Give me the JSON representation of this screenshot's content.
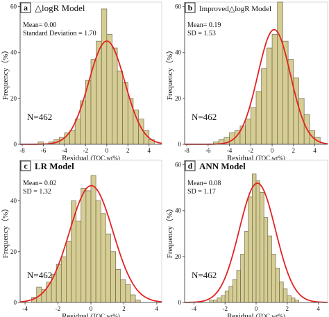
{
  "chart_data": [
    {
      "type": "bar",
      "panel_letter": "a",
      "title": "△logR Model",
      "stats": [
        "Mean= 0.00",
        "Standard Deviation = 1.70"
      ],
      "n_label": "N=462",
      "ylabel": "Frequency（%）",
      "xlabel": "Residual",
      "xlabel_unit": "(TOC.wt%)",
      "xlim": [
        -8.2,
        5.2
      ],
      "ylim": [
        0,
        62
      ],
      "xticks": [
        -8,
        -6,
        -4,
        -2,
        0,
        2,
        4
      ],
      "yticks": [
        0,
        20,
        40,
        60
      ],
      "bin_start": -6.5,
      "bin_width": 0.5,
      "values": [
        1,
        0,
        1,
        2,
        3,
        5,
        6,
        11,
        19,
        28,
        37,
        45,
        59,
        48,
        42,
        32,
        27,
        20,
        15,
        11,
        6,
        2
      ],
      "fit": {
        "mean": 0.0,
        "sd": 1.7,
        "peak": 45
      }
    },
    {
      "type": "bar",
      "panel_letter": "b",
      "title": "Improved△logR Model",
      "stats": [
        "Mean= 0.19",
        "SD = 1.53"
      ],
      "n_label": "N=462",
      "ylabel": "Frequency（%）",
      "xlabel": "Residual",
      "xlabel_unit": "(TOC.wt%)",
      "xlim": [
        -8.2,
        5.2
      ],
      "ylim": [
        0,
        62
      ],
      "xticks": [
        -8,
        -6,
        -4,
        -2,
        0,
        2,
        4
      ],
      "yticks": [
        0,
        20,
        40,
        60
      ],
      "bin_start": -5.5,
      "bin_width": 0.5,
      "values": [
        1,
        2,
        3,
        5,
        6,
        8,
        11,
        16,
        23,
        33,
        42,
        48,
        62,
        45,
        37,
        29,
        20,
        13,
        6,
        3
      ],
      "fit": {
        "mean": 0.19,
        "sd": 1.53,
        "peak": 50
      }
    },
    {
      "type": "bar",
      "panel_letter": "c",
      "title": "LR Model",
      "stats": [
        "Mean= 0.02",
        "SD = 1.32"
      ],
      "n_label": "N=462",
      "ylabel": "Frequency（%）",
      "xlabel": "Residual",
      "xlabel_unit": "(TOC.wt%)",
      "xlim": [
        -4.3,
        4.3
      ],
      "ylim": [
        0,
        56
      ],
      "xticks": [
        -4,
        -2,
        0,
        2,
        4
      ],
      "yticks": [
        0,
        20,
        40
      ],
      "bin_start": -3.6,
      "bin_width": 0.3,
      "values": [
        2,
        6,
        5,
        8,
        11,
        15,
        18,
        24,
        40,
        32,
        45,
        44,
        50,
        40,
        35,
        27,
        20,
        13,
        9,
        7,
        3,
        1
      ],
      "fit": {
        "mean": 0.02,
        "sd": 1.32,
        "peak": 46
      }
    },
    {
      "type": "bar",
      "panel_letter": "d",
      "title": "ANN Model",
      "stats": [
        "Mean= 0.08",
        "SD = 1.17"
      ],
      "n_label": "N=462",
      "ylabel": "Frequency（%）",
      "xlabel": "Residual",
      "xlabel_unit": "(TOC.wt%)",
      "xlim": [
        -4.6,
        4.6
      ],
      "ylim": [
        0,
        62
      ],
      "xticks": [
        -4,
        -2,
        0,
        2,
        4
      ],
      "yticks": [
        0,
        20,
        40,
        60
      ],
      "bin_start": -3.0,
      "bin_width": 0.25,
      "values": [
        1,
        1,
        2,
        3,
        5,
        7,
        10,
        14,
        21,
        31,
        46,
        56,
        53,
        48,
        37,
        29,
        21,
        15,
        9,
        6,
        3,
        2,
        1
      ],
      "fit": {
        "mean": 0.08,
        "sd": 1.17,
        "peak": 52
      }
    }
  ],
  "colors": {
    "bar_fill": "#d6cd94",
    "bar_stroke": "#6e6a4e",
    "fit_line": "#e32222",
    "axis": "#555555",
    "text": "#111111"
  }
}
